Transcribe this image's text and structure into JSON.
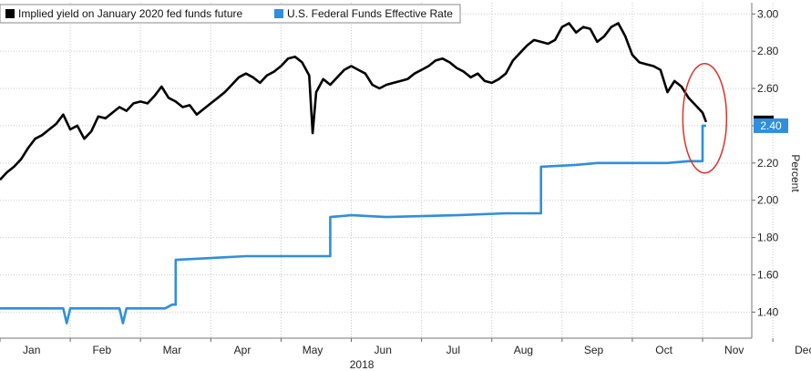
{
  "chart_data": {
    "type": "line",
    "title": "",
    "xlabel": "",
    "ylabel": "Percent",
    "year_label": "2018",
    "months": [
      "Jan",
      "Feb",
      "Mar",
      "Apr",
      "May",
      "Jun",
      "Jul",
      "Aug",
      "Sep",
      "Oct",
      "Nov",
      "Dec"
    ],
    "y_ticks": [
      "3.00",
      "2.80",
      "2.60",
      "2.40",
      "2.20",
      "2.00",
      "1.80",
      "1.60",
      "1.40"
    ],
    "ylim": [
      1.26,
      3.06
    ],
    "grid": true,
    "legend_position": "top-left",
    "last_value_label": "2.40",
    "colors": {
      "implied": "#000000",
      "effr": "#2f8fdd",
      "highlight": "#d9342b",
      "grid": "#c9c9c9"
    },
    "series": [
      {
        "name": "Implied yield on January 2020 fed funds future",
        "color": "#000000",
        "points": [
          [
            0.0,
            2.11
          ],
          [
            0.1,
            2.15
          ],
          [
            0.2,
            2.18
          ],
          [
            0.3,
            2.22
          ],
          [
            0.4,
            2.28
          ],
          [
            0.5,
            2.33
          ],
          [
            0.6,
            2.35
          ],
          [
            0.7,
            2.38
          ],
          [
            0.8,
            2.41
          ],
          [
            0.9,
            2.46
          ],
          [
            1.0,
            2.38
          ],
          [
            1.1,
            2.4
          ],
          [
            1.2,
            2.33
          ],
          [
            1.3,
            2.37
          ],
          [
            1.4,
            2.45
          ],
          [
            1.5,
            2.44
          ],
          [
            1.6,
            2.47
          ],
          [
            1.7,
            2.5
          ],
          [
            1.8,
            2.48
          ],
          [
            1.9,
            2.52
          ],
          [
            2.0,
            2.53
          ],
          [
            2.1,
            2.52
          ],
          [
            2.2,
            2.56
          ],
          [
            2.3,
            2.61
          ],
          [
            2.4,
            2.55
          ],
          [
            2.5,
            2.53
          ],
          [
            2.6,
            2.5
          ],
          [
            2.7,
            2.51
          ],
          [
            2.8,
            2.46
          ],
          [
            2.9,
            2.49
          ],
          [
            3.0,
            2.52
          ],
          [
            3.1,
            2.55
          ],
          [
            3.2,
            2.58
          ],
          [
            3.3,
            2.62
          ],
          [
            3.4,
            2.66
          ],
          [
            3.5,
            2.68
          ],
          [
            3.6,
            2.66
          ],
          [
            3.7,
            2.63
          ],
          [
            3.8,
            2.67
          ],
          [
            3.9,
            2.69
          ],
          [
            4.0,
            2.72
          ],
          [
            4.1,
            2.76
          ],
          [
            4.2,
            2.77
          ],
          [
            4.3,
            2.74
          ],
          [
            4.4,
            2.67
          ],
          [
            4.45,
            2.36
          ],
          [
            4.5,
            2.58
          ],
          [
            4.6,
            2.65
          ],
          [
            4.7,
            2.62
          ],
          [
            4.8,
            2.66
          ],
          [
            4.9,
            2.7
          ],
          [
            5.0,
            2.72
          ],
          [
            5.1,
            2.7
          ],
          [
            5.2,
            2.68
          ],
          [
            5.3,
            2.62
          ],
          [
            5.4,
            2.6
          ],
          [
            5.5,
            2.62
          ],
          [
            5.6,
            2.63
          ],
          [
            5.7,
            2.64
          ],
          [
            5.8,
            2.65
          ],
          [
            5.9,
            2.68
          ],
          [
            6.0,
            2.7
          ],
          [
            6.1,
            2.72
          ],
          [
            6.2,
            2.75
          ],
          [
            6.3,
            2.76
          ],
          [
            6.4,
            2.74
          ],
          [
            6.5,
            2.71
          ],
          [
            6.6,
            2.69
          ],
          [
            6.7,
            2.66
          ],
          [
            6.8,
            2.68
          ],
          [
            6.9,
            2.64
          ],
          [
            7.0,
            2.63
          ],
          [
            7.1,
            2.65
          ],
          [
            7.2,
            2.68
          ],
          [
            7.3,
            2.75
          ],
          [
            7.4,
            2.79
          ],
          [
            7.5,
            2.83
          ],
          [
            7.6,
            2.86
          ],
          [
            7.7,
            2.85
          ],
          [
            7.8,
            2.84
          ],
          [
            7.9,
            2.86
          ],
          [
            8.0,
            2.93
          ],
          [
            8.1,
            2.95
          ],
          [
            8.2,
            2.9
          ],
          [
            8.3,
            2.93
          ],
          [
            8.4,
            2.92
          ],
          [
            8.5,
            2.85
          ],
          [
            8.6,
            2.88
          ],
          [
            8.7,
            2.93
          ],
          [
            8.8,
            2.95
          ],
          [
            8.9,
            2.88
          ],
          [
            9.0,
            2.78
          ],
          [
            9.1,
            2.74
          ],
          [
            9.2,
            2.73
          ],
          [
            9.3,
            2.72
          ],
          [
            9.4,
            2.7
          ],
          [
            9.5,
            2.58
          ],
          [
            9.6,
            2.64
          ],
          [
            9.7,
            2.61
          ],
          [
            9.8,
            2.55
          ],
          [
            9.9,
            2.51
          ],
          [
            10.0,
            2.47
          ],
          [
            10.05,
            2.42
          ]
        ]
      },
      {
        "name": "U.S. Federal Funds Effective Rate",
        "color": "#2f8fdd",
        "points": [
          [
            0.0,
            1.42
          ],
          [
            0.9,
            1.42
          ],
          [
            0.95,
            1.34
          ],
          [
            1.0,
            1.42
          ],
          [
            1.7,
            1.42
          ],
          [
            1.75,
            1.34
          ],
          [
            1.8,
            1.42
          ],
          [
            2.35,
            1.42
          ],
          [
            2.45,
            1.44
          ],
          [
            2.5,
            1.44
          ],
          [
            2.5,
            1.68
          ],
          [
            3.0,
            1.69
          ],
          [
            3.5,
            1.7
          ],
          [
            4.0,
            1.7
          ],
          [
            4.7,
            1.7
          ],
          [
            4.7,
            1.91
          ],
          [
            5.0,
            1.92
          ],
          [
            5.5,
            1.91
          ],
          [
            6.5,
            1.92
          ],
          [
            7.2,
            1.93
          ],
          [
            7.7,
            1.93
          ],
          [
            7.7,
            2.18
          ],
          [
            8.2,
            2.19
          ],
          [
            8.5,
            2.2
          ],
          [
            9.5,
            2.2
          ],
          [
            9.8,
            2.21
          ],
          [
            10.0,
            2.21
          ],
          [
            10.0,
            2.4
          ],
          [
            10.05,
            2.4
          ]
        ]
      }
    ]
  }
}
